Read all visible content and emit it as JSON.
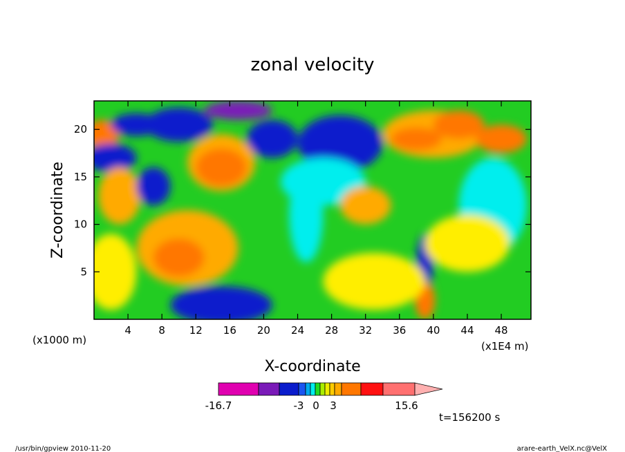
{
  "chart_data": {
    "type": "heatmap",
    "title": "zonal velocity",
    "xlabel": "X-coordinate",
    "ylabel": "Z-coordinate",
    "x_unit_left": "(x1000 m)",
    "x_unit_right": "(x1E4 m)",
    "xlim": [
      0,
      51.5
    ],
    "ylim": [
      0,
      23
    ],
    "x_ticks": [
      "4",
      "8",
      "12",
      "16",
      "20",
      "24",
      "28",
      "32",
      "36",
      "40",
      "44",
      "48"
    ],
    "x_tick_values": [
      4,
      8,
      12,
      16,
      20,
      24,
      28,
      32,
      36,
      40,
      44,
      48
    ],
    "y_ticks": [
      "5",
      "10",
      "15",
      "20"
    ],
    "y_tick_values": [
      5,
      10,
      15,
      20
    ],
    "grid": false,
    "colorbar": {
      "min_label": "-16.7",
      "mid_labels": [
        "-3",
        "0",
        "3"
      ],
      "max_label": "15.6",
      "colors": [
        "#e000b0",
        "#7a1ab8",
        "#0a1ccc",
        "#1a55f0",
        "#00aaee",
        "#00eeee",
        "#22dd22",
        "#aaee00",
        "#eeee00",
        "#ffcc00",
        "#ffaa00",
        "#ff7700",
        "#ff1111",
        "#ff7070",
        "#ffb0b0"
      ]
    },
    "time_label": "t=156200 s",
    "blobs": [
      {
        "x": 1,
        "z": 19.5,
        "rx": 2,
        "ry": 1.5,
        "c": "#ff7700"
      },
      {
        "x": 2,
        "z": 17,
        "rx": 3,
        "ry": 1.5,
        "c": "#0a1ccc"
      },
      {
        "x": 5,
        "z": 20.5,
        "rx": 3,
        "ry": 1.2,
        "c": "#0a1ccc"
      },
      {
        "x": 3,
        "z": 13,
        "rx": 2.5,
        "ry": 3,
        "c": "#ffaa00"
      },
      {
        "x": 7,
        "z": 14,
        "rx": 2,
        "ry": 2,
        "c": "#0a1ccc"
      },
      {
        "x": 15,
        "z": 16.5,
        "rx": 4,
        "ry": 3,
        "c": "#ffaa00"
      },
      {
        "x": 15,
        "z": 16,
        "rx": 3,
        "ry": 2,
        "c": "#ff7700"
      },
      {
        "x": 10,
        "z": 20.5,
        "rx": 4,
        "ry": 1.8,
        "c": "#0a1ccc"
      },
      {
        "x": 17,
        "z": 22,
        "rx": 4,
        "ry": 1,
        "c": "#7a1ab8"
      },
      {
        "x": 21,
        "z": 19,
        "rx": 3,
        "ry": 2,
        "c": "#0a1ccc"
      },
      {
        "x": 11,
        "z": 7.5,
        "rx": 6,
        "ry": 4,
        "c": "#ffaa00"
      },
      {
        "x": 10,
        "z": 6.5,
        "rx": 3,
        "ry": 2,
        "c": "#ff7700"
      },
      {
        "x": 15,
        "z": 1.5,
        "rx": 6,
        "ry": 2,
        "c": "#0a1ccc"
      },
      {
        "x": 25,
        "z": 11,
        "rx": 2,
        "ry": 5,
        "c": "#00eeee"
      },
      {
        "x": 29,
        "z": 18.5,
        "rx": 5,
        "ry": 3,
        "c": "#0a1ccc"
      },
      {
        "x": 27,
        "z": 14.5,
        "rx": 5,
        "ry": 2.5,
        "c": "#00eeee"
      },
      {
        "x": 32,
        "z": 12,
        "rx": 3,
        "ry": 2,
        "c": "#ffaa00"
      },
      {
        "x": 40,
        "z": 19.5,
        "rx": 6,
        "ry": 2.5,
        "c": "#ffaa00"
      },
      {
        "x": 38,
        "z": 19,
        "rx": 3,
        "ry": 1.2,
        "c": "#ff7700"
      },
      {
        "x": 43,
        "z": 20.5,
        "rx": 3,
        "ry": 1.5,
        "c": "#ff7700"
      },
      {
        "x": 48,
        "z": 19,
        "rx": 3,
        "ry": 1.5,
        "c": "#ff7700"
      },
      {
        "x": 47,
        "z": 12,
        "rx": 4,
        "ry": 5,
        "c": "#00eeee"
      },
      {
        "x": 39,
        "z": 6,
        "rx": 1,
        "ry": 3,
        "c": "#0a1ccc"
      },
      {
        "x": 39,
        "z": 2,
        "rx": 1.2,
        "ry": 2,
        "c": "#ff7700"
      },
      {
        "x": 44,
        "z": 8,
        "rx": 5,
        "ry": 3,
        "c": "#ffee00"
      },
      {
        "x": 33,
        "z": 4,
        "rx": 6,
        "ry": 3,
        "c": "#ffee00"
      },
      {
        "x": 2,
        "z": 5,
        "rx": 3,
        "ry": 4,
        "c": "#ffee00"
      }
    ]
  },
  "footer": {
    "left": "/usr/bin/gpview   2010-11-20",
    "right": "arare-earth_VelX.nc@VelX"
  }
}
